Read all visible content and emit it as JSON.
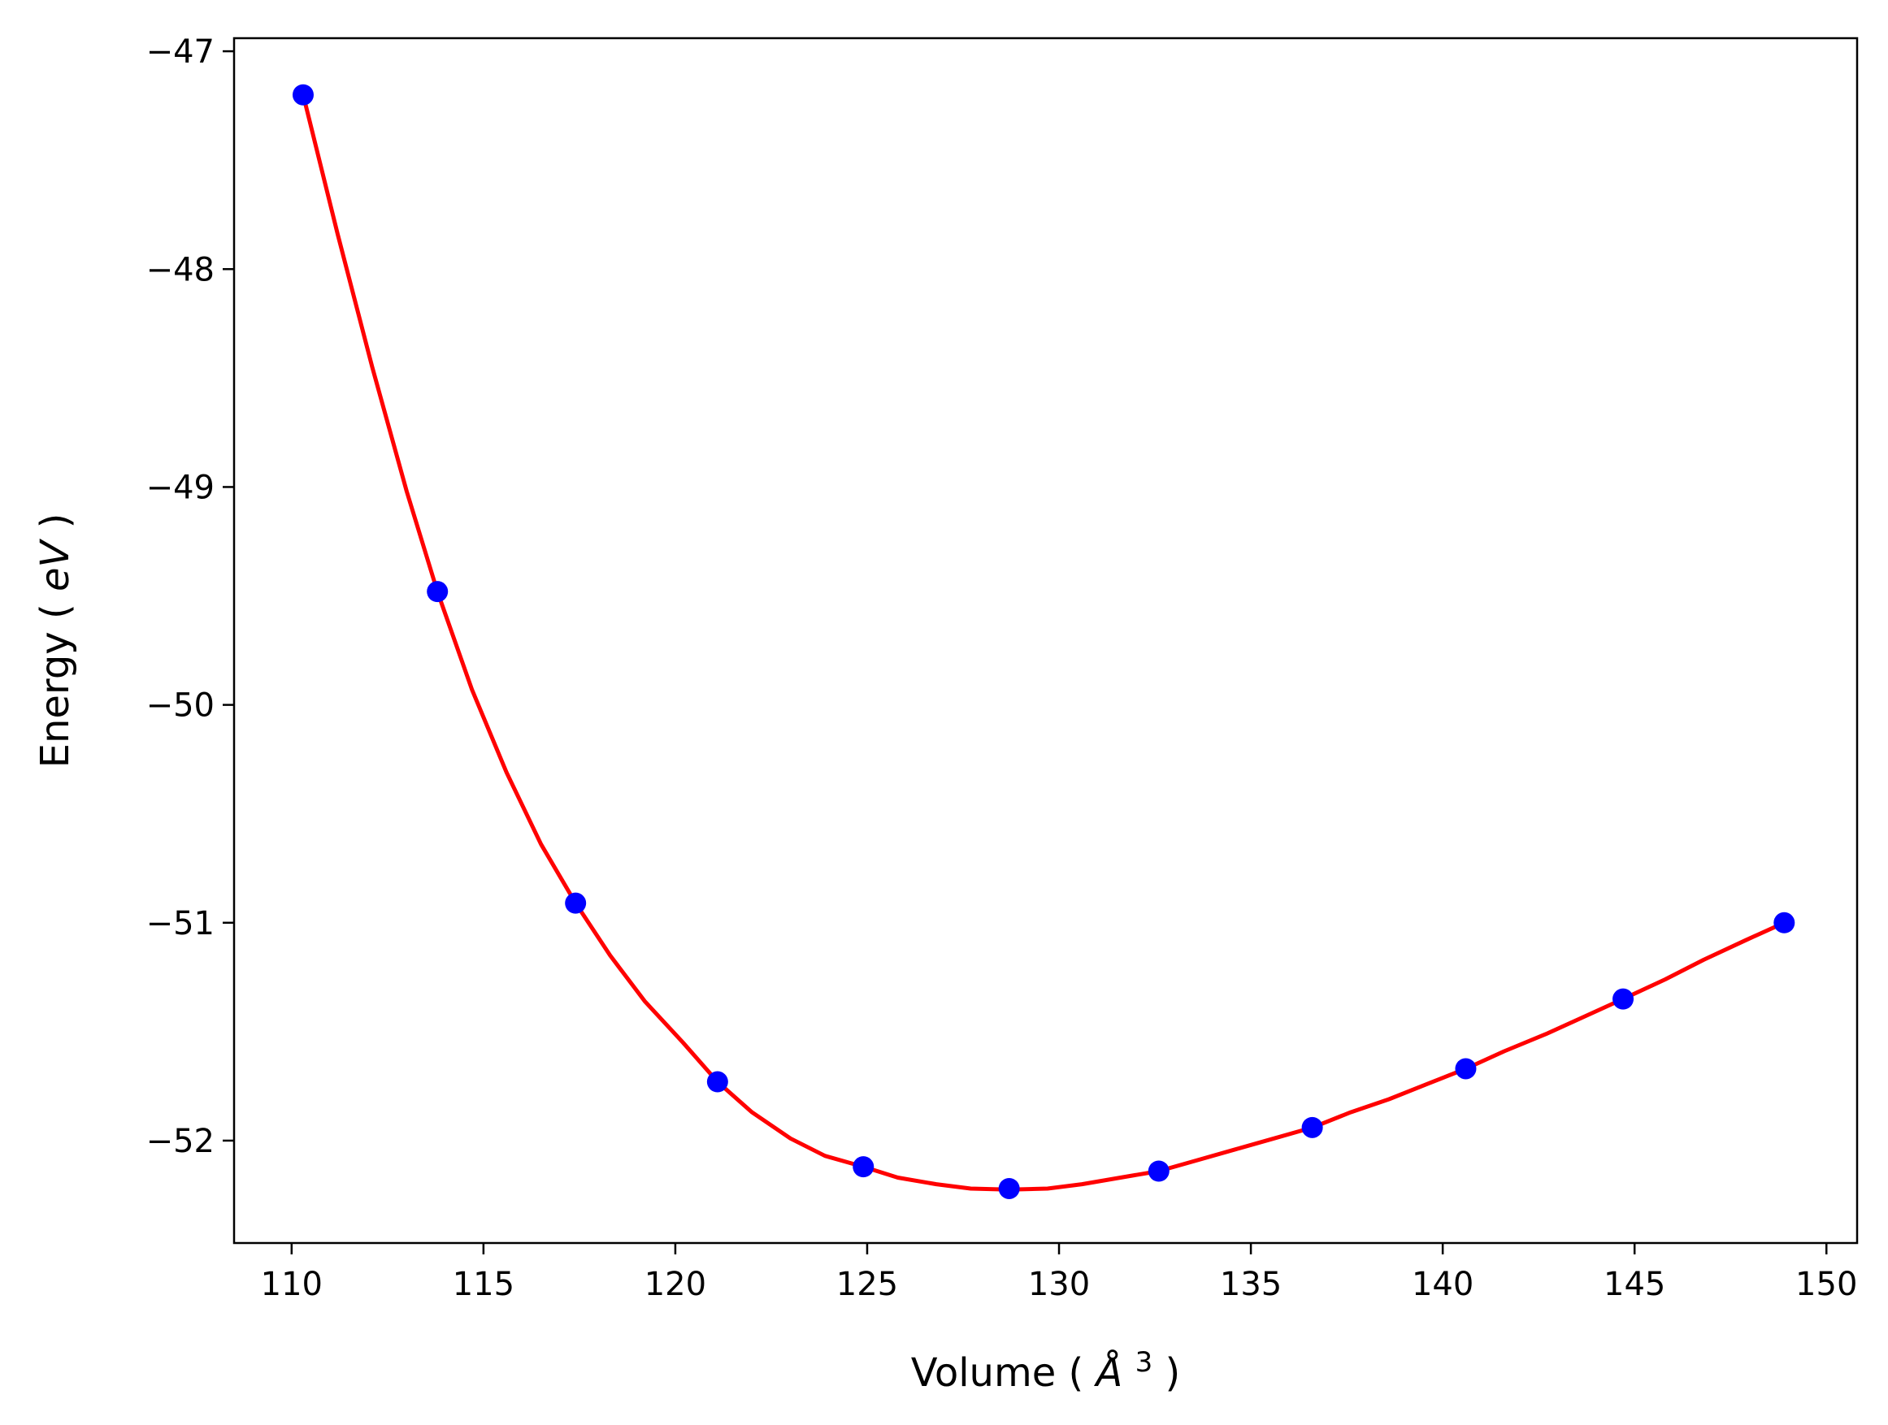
{
  "chart_data": {
    "type": "scatter",
    "title": "",
    "xlabel": "Volume",
    "xlabel_unit_base": "Å",
    "xlabel_unit_exp": "3",
    "ylabel": "Energy",
    "ylabel_unit": "eV",
    "xlim": [
      108.5,
      150.8
    ],
    "ylim": [
      -52.47,
      -46.94
    ],
    "x_ticks": [
      110,
      115,
      120,
      125,
      130,
      135,
      140,
      145,
      150
    ],
    "x_tick_labels": [
      "110",
      "115",
      "120",
      "125",
      "130",
      "135",
      "140",
      "145",
      "150"
    ],
    "y_ticks": [
      -47,
      -48,
      -49,
      -50,
      -51,
      -52
    ],
    "y_tick_labels": [
      "−47",
      "−48",
      "−49",
      "−50",
      "−51",
      "−52"
    ],
    "grid": false,
    "series": [
      {
        "kind": "points",
        "color": "#0000ff",
        "x": [
          110.3,
          113.8,
          117.4,
          121.1,
          124.9,
          128.7,
          132.6,
          136.6,
          140.6,
          144.7,
          148.9
        ],
        "y": [
          -47.2,
          -49.48,
          -50.91,
          -51.73,
          -52.12,
          -52.22,
          -52.14,
          -51.94,
          -51.67,
          -51.35,
          -51.0
        ]
      },
      {
        "kind": "fit-curve",
        "color": "#ff0000",
        "x": [
          110.3,
          111.2,
          112.1,
          113.0,
          113.8,
          114.7,
          115.6,
          116.5,
          117.4,
          118.3,
          119.2,
          120.2,
          121.1,
          122.0,
          123.0,
          123.9,
          124.9,
          125.8,
          126.8,
          127.7,
          128.7,
          129.7,
          130.6,
          131.6,
          132.6,
          133.6,
          134.6,
          135.6,
          136.6,
          137.6,
          138.6,
          139.6,
          140.6,
          141.6,
          142.7,
          143.7,
          144.7,
          145.8,
          146.8,
          147.9,
          148.9
        ],
        "y": [
          -47.2,
          -47.84,
          -48.45,
          -49.02,
          -49.48,
          -49.93,
          -50.31,
          -50.64,
          -50.91,
          -51.15,
          -51.36,
          -51.55,
          -51.73,
          -51.87,
          -51.99,
          -52.07,
          -52.12,
          -52.17,
          -52.2,
          -52.22,
          -52.225,
          -52.22,
          -52.2,
          -52.17,
          -52.14,
          -52.09,
          -52.04,
          -51.99,
          -51.94,
          -51.87,
          -51.81,
          -51.74,
          -51.67,
          -51.59,
          -51.51,
          -51.43,
          -51.35,
          -51.26,
          -51.17,
          -51.08,
          -51.0
        ]
      }
    ]
  }
}
